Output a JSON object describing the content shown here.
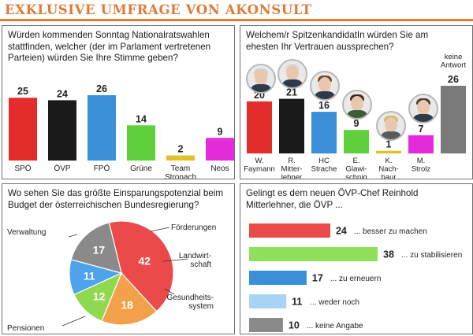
{
  "header": {
    "title": "EXKLUSIVE UMFRAGE VON AKONSULT",
    "accent": "#e07b39"
  },
  "panels": {
    "parties": {
      "question": "Würden kommenden Sonntag Nationalratswahlen stattfinden, welcher (der im Parlament vertretenen Parteien) würden Sie Ihre Stimme geben?"
    },
    "candidates": {
      "question": "Welchem/r SpitzenkandidatIn würden Sie am ehesten Ihr Vertrauen aussprechen?"
    },
    "savings": {
      "question": "Wo sehen Sie das größte Einsparungspotenzial beim Budget der österreichischen Bundesregierung?"
    },
    "oevp": {
      "question": "Gelingt es dem neuen ÖVP-Chef Reinhold Mitterlehner, die ÖVP ..."
    }
  },
  "chart_data": [
    {
      "type": "bar",
      "categories": [
        "SPÖ",
        "ÖVP",
        "FPÖ",
        "Grüne",
        "Team Stronach",
        "Neos"
      ],
      "values": [
        25,
        24,
        26,
        14,
        2,
        9
      ],
      "colors": [
        "#e32d2d",
        "#1a1a1a",
        "#3b8fd6",
        "#5fcf3b",
        "#e0c12a",
        "#e62bdc"
      ],
      "ylim": [
        0,
        26
      ]
    },
    {
      "type": "bar",
      "categories": [
        "W. Faymann",
        "R. Mitter- lehner",
        "HC Strache",
        "E. Glawi- schnig",
        "K. Nach- baur",
        "M. Strolz",
        "keine Antwort"
      ],
      "values": [
        20,
        21,
        16,
        9,
        1,
        7,
        26
      ],
      "colors": [
        "#e32d2d",
        "#1a1a1a",
        "#3b8fd6",
        "#5fcf3b",
        "#e0c12a",
        "#e62bdc",
        "#7a7a7a"
      ],
      "ylim": [
        0,
        26
      ]
    },
    {
      "type": "pie",
      "labels": [
        "Verwaltung",
        "Förderungen",
        "Landwirt- schaft",
        "Gesundheits- system",
        "Pensionen"
      ],
      "values": [
        42,
        18,
        12,
        11,
        17
      ],
      "colors": [
        "#ea4a4a",
        "#f2a04a",
        "#8fd84f",
        "#4ea3ea",
        "#8a8a8a"
      ]
    },
    {
      "type": "bar",
      "orientation": "horizontal",
      "categories": [
        "... besser zu machen",
        "... zu stabilisieren",
        "... zu erneuern",
        "... weder noch",
        "... keine Angabe"
      ],
      "values": [
        24,
        38,
        17,
        11,
        10
      ],
      "colors": [
        "#ea4a4a",
        "#8fe05a",
        "#3b8fd6",
        "#a8d3f2",
        "#8a8a8a"
      ],
      "xlim": [
        0,
        38
      ]
    }
  ]
}
